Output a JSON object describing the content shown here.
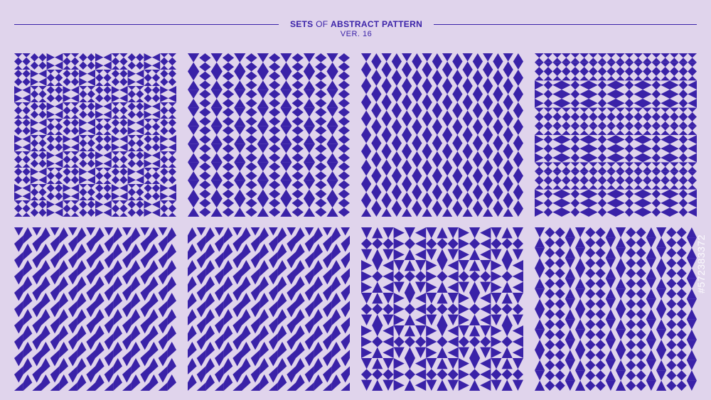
{
  "header": {
    "title_sets": "SETS",
    "title_of": "OF",
    "title_rest": "ABSTRACT PATTERN",
    "subtitle": "VER. 16"
  },
  "colors": {
    "background": "#e0d4ec",
    "ink": "#3a22a8"
  },
  "watermark": "#572383372",
  "patterns": [
    {
      "name": "pattern-1",
      "style": "quad-mixed"
    },
    {
      "name": "pattern-2",
      "style": "diamond-columns"
    },
    {
      "name": "pattern-3",
      "style": "triangle-columns"
    },
    {
      "name": "pattern-4",
      "style": "hourglass-bands"
    },
    {
      "name": "pattern-5",
      "style": "chevron-rows"
    },
    {
      "name": "pattern-6",
      "style": "chevron-rows-alt"
    },
    {
      "name": "pattern-7",
      "style": "diamond-blocks"
    },
    {
      "name": "pattern-8",
      "style": "diamond-stripes"
    }
  ]
}
